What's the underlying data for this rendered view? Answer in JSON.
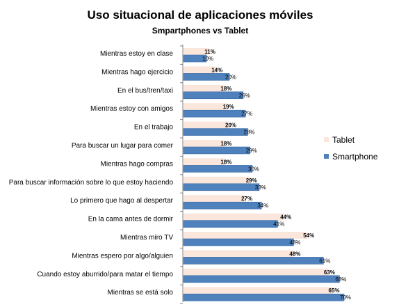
{
  "chart_data": {
    "type": "bar",
    "orientation": "horizontal",
    "title": "Uso situacional de aplicaciones móviles",
    "subtitle": "Smpartphones vs Tablet",
    "categories": [
      "Mientras estoy en clase",
      "Mientras hago ejercicio",
      "En el bus/tren/taxi",
      "Mientras estoy con amigos",
      "En el trabajo",
      "Para buscar un lugar para comer",
      "Mientras hago compras",
      "Para buscar información sobre lo que estoy haciendo",
      "Lo primero que hago al despertar",
      "En la cama antes de dormir",
      "Mientras miro TV",
      "Mientras espero por algo/alguien",
      "Cuando estoy aburrido/para matar el tiempo",
      "Mientras se está solo"
    ],
    "series": [
      {
        "name": "Tablet",
        "color": "#fbe6dc",
        "values": [
          11,
          14,
          18,
          19,
          20,
          18,
          18,
          29,
          27,
          44,
          54,
          48,
          63,
          65
        ],
        "labels": [
          "11%",
          "14%",
          "18%",
          "19%",
          "20%",
          "18%",
          "18%",
          "29%",
          "27%",
          "44%",
          "54%",
          "48%",
          "63%",
          "65%"
        ]
      },
      {
        "name": "Smartphone",
        "color": "#4f81bd",
        "values": [
          10,
          20,
          26,
          27,
          28,
          29,
          30,
          33,
          34,
          41,
          48,
          61,
          68,
          70
        ],
        "labels": [
          "10%",
          "20%",
          "26%",
          "27%",
          "28%",
          "29%",
          "30%",
          "33%",
          "34%",
          "41%",
          "48%",
          "61%",
          "68%",
          "70%"
        ]
      }
    ],
    "xlim": [
      0,
      75
    ],
    "grid": false,
    "legend_position": "right"
  }
}
